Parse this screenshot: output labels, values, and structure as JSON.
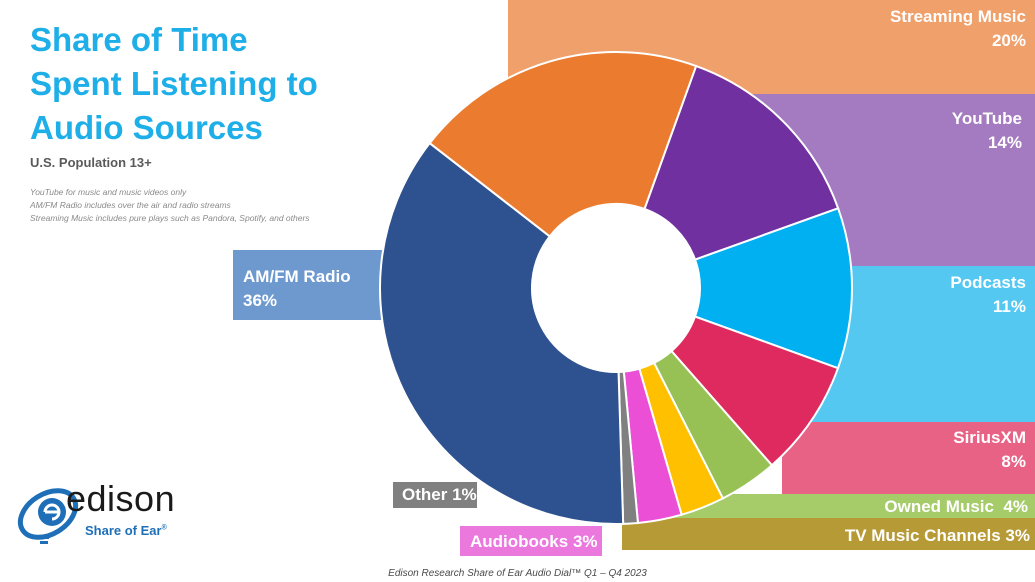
{
  "title_lines": [
    "Share of Time",
    "Spent Listening to",
    "Audio Sources"
  ],
  "subtitle": "U.S. Population 13+",
  "notes": [
    "YouTube for music and music videos only",
    "AM/FM Radio includes over the air and radio streams",
    "Streaming Music includes pure plays such as Pandora, Spotify, and others"
  ],
  "source": "Edison Research Share of Ear Audio Dial™ Q1 – Q4 2023",
  "logo": {
    "wordmark": "edison",
    "tagline": "Share of Ear",
    "trademark": "®"
  },
  "chart_data": {
    "type": "pie",
    "style": "donut",
    "unit": "%",
    "slices": [
      {
        "name": "Streaming Music",
        "label": "20%",
        "value": 20,
        "color": "#ea7b2f",
        "callout_color": "#f0a06a"
      },
      {
        "name": "YouTube",
        "label": "14%",
        "value": 14,
        "color": "#7030a0",
        "callout_color": "#a47ac0"
      },
      {
        "name": "Podcasts",
        "label": "11%",
        "value": 11,
        "color": "#00b0f0",
        "callout_color": "#55c8f2"
      },
      {
        "name": "SiriusXM",
        "label": "8%",
        "value": 8,
        "color": "#de2a5e",
        "callout_color": "#e86286"
      },
      {
        "name": "Owned Music",
        "label": "4%",
        "value": 4,
        "color": "#97c155",
        "callout_color": "#a6cc6a"
      },
      {
        "name": "TV Music Channels",
        "label": "3%",
        "value": 3,
        "color": "#ffc000",
        "callout_color": "#b69a36"
      },
      {
        "name": "Audiobooks",
        "label": "3%",
        "value": 3,
        "color": "#ea4fd6",
        "callout_color": "#ea78dd"
      },
      {
        "name": "Other",
        "label": "1%",
        "value": 1,
        "color": "#808080",
        "callout_color": "#808080"
      },
      {
        "name": "AM/FM Radio",
        "label": "36%",
        "value": 36,
        "color": "#2e5190",
        "callout_color": "#6e99cf"
      }
    ]
  }
}
